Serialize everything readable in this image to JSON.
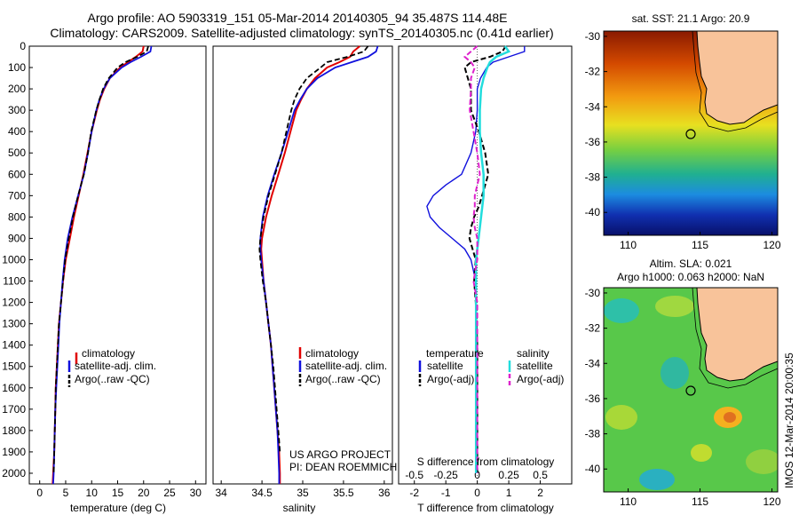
{
  "title": {
    "line1": "Argo profile: AO 5903319_151 05-Mar-2014 20140305_94 35.487S 114.48E",
    "line2": "Climatology: CARS2009. Satellite-adjusted climatology: synTS_20140305.nc (0.41d earlier)"
  },
  "depth_ticks": [
    "0",
    "100",
    "200",
    "300",
    "400",
    "500",
    "600",
    "700",
    "800",
    "900",
    "1000",
    "1100",
    "1200",
    "1300",
    "1400",
    "1500",
    "1600",
    "1700",
    "1800",
    "1900",
    "2000"
  ],
  "colors": {
    "climatology": "#e00000",
    "satellite": "#1010dd",
    "argo": "#000000",
    "sat_salinity": "#22dddd",
    "argo_salinity": "#dd22cc",
    "land": "#f8c39a"
  },
  "panel_temperature": {
    "xlabel": "temperature (deg C)",
    "x_ticks": [
      "0",
      "5",
      "10",
      "15",
      "20",
      "25",
      "30"
    ],
    "legend": [
      "climatology",
      "satellite-adj. clim.",
      "Argo(..raw -QC)"
    ]
  },
  "panel_salinity": {
    "xlabel": "salinity",
    "x_ticks": [
      "34",
      "34.5",
      "35",
      "35.5",
      "36"
    ],
    "legend": [
      "climatology",
      "satellite-adj. clim.",
      "Argo(..raw -QC)"
    ],
    "note1": "US ARGO PROJECT",
    "note2": "PI: DEAN ROEMMICH"
  },
  "panel_difference": {
    "xlabel": "T difference from climatology",
    "top_label": "S difference from climatology",
    "t_ticks": [
      "-2",
      "-1",
      "0",
      "1",
      "2"
    ],
    "s_ticks": [
      "-0.5",
      "-0.25",
      "0",
      "0.25",
      "0.5"
    ],
    "legend_temp_title": "temperature",
    "legend_sal_title": "salinity",
    "legend_temp_items": [
      "satellite",
      "Argo(-adj)"
    ],
    "legend_sal_items": [
      "satellite",
      "Argo(-adj)"
    ]
  },
  "map_sst": {
    "title": "sat. SST: 21.1  Argo: 20.9",
    "y_ticks": [
      "-30",
      "-32",
      "-34",
      "-36",
      "-38",
      "-40"
    ],
    "x_ticks": [
      "110",
      "115",
      "120"
    ]
  },
  "map_sla": {
    "title1": "Altim. SLA: 0.021",
    "title2": "Argo h1000: 0.063 h2000: NaN",
    "y_ticks": [
      "-30",
      "-32",
      "-34",
      "-36",
      "-38",
      "-40"
    ],
    "x_ticks": [
      "110",
      "115",
      "120"
    ]
  },
  "imos_stamp": "IMOS 12-Mar-2014 20:00:35",
  "chart_data": {
    "type": "line",
    "ylabel": "",
    "ylim": [
      2050,
      0
    ],
    "temperature": {
      "xlim": [
        -2,
        32
      ],
      "depth": [
        0,
        25,
        50,
        75,
        100,
        150,
        200,
        250,
        300,
        400,
        500,
        600,
        700,
        800,
        900,
        1000,
        1100,
        1200,
        1300,
        1400,
        1500,
        1600,
        1700,
        1800,
        1900,
        2000,
        2050
      ],
      "climatology": [
        20.0,
        19.8,
        18.5,
        17.0,
        15.5,
        13.5,
        12.4,
        11.6,
        11.0,
        10.0,
        9.2,
        8.4,
        7.5,
        6.6,
        5.8,
        5.0,
        4.5,
        4.1,
        3.7,
        3.5,
        3.3,
        3.1,
        3.0,
        2.9,
        2.8,
        2.6,
        2.5
      ],
      "satellite": [
        21.5,
        21.3,
        19.5,
        17.5,
        15.8,
        13.5,
        12.3,
        11.5,
        10.9,
        10.0,
        9.3,
        8.5,
        7.4,
        6.3,
        5.4,
        4.8,
        4.4,
        4.1,
        3.8,
        3.6,
        3.4,
        3.2,
        3.0,
        2.9,
        2.8,
        2.7,
        2.6
      ],
      "argo": [
        20.9,
        20.6,
        18.8,
        16.5,
        15.0,
        13.3,
        12.2,
        11.5,
        10.9,
        9.9,
        9.3,
        8.5,
        7.4,
        6.4,
        5.6,
        4.9,
        4.5,
        4.1,
        3.7,
        3.5,
        3.3,
        3.1,
        3.0,
        2.9,
        2.8,
        2.7
      ]
    },
    "salinity": {
      "xlim": [
        33.9,
        36.1
      ],
      "depth": [
        0,
        25,
        50,
        75,
        100,
        150,
        200,
        250,
        300,
        400,
        500,
        600,
        700,
        800,
        900,
        950,
        1000,
        1100,
        1200,
        1300,
        1400,
        1500,
        1600,
        1700,
        1800,
        1900,
        2000,
        2050
      ],
      "climatology": [
        35.7,
        35.62,
        35.58,
        35.45,
        35.3,
        35.15,
        35.05,
        34.98,
        34.92,
        34.85,
        34.78,
        34.7,
        34.62,
        34.55,
        34.5,
        34.49,
        34.5,
        34.52,
        34.55,
        34.58,
        34.61,
        34.63,
        34.65,
        34.67,
        34.69,
        34.71,
        34.72,
        34.72
      ],
      "satellite": [
        35.92,
        35.9,
        35.8,
        35.6,
        35.4,
        35.18,
        35.05,
        34.97,
        34.9,
        34.82,
        34.74,
        34.65,
        34.57,
        34.51,
        34.48,
        34.48,
        34.49,
        34.52,
        34.55,
        34.58,
        34.61,
        34.63,
        34.65,
        34.67,
        34.69,
        34.7,
        34.71,
        34.71
      ],
      "argo": [
        35.8,
        35.75,
        35.55,
        35.3,
        35.22,
        35.05,
        34.96,
        34.9,
        34.86,
        34.8,
        34.74,
        34.66,
        34.58,
        34.52,
        34.48,
        34.47,
        34.48,
        34.51,
        34.55,
        34.58,
        34.61,
        34.64,
        34.66,
        34.68,
        34.7,
        34.72
      ]
    },
    "difference": {
      "xlim": [
        -2.5,
        3.0
      ],
      "depth": [
        0,
        25,
        50,
        75,
        100,
        150,
        200,
        300,
        400,
        500,
        600,
        650,
        700,
        750,
        800,
        850,
        900,
        950,
        1000,
        1100,
        1200,
        1400,
        1600,
        1800,
        2000
      ],
      "t_satellite": [
        1.5,
        1.5,
        1.0,
        0.5,
        0.3,
        0.1,
        0.0,
        0.0,
        -0.05,
        -0.2,
        -0.5,
        -1.0,
        -1.4,
        -1.6,
        -1.5,
        -1.2,
        -0.8,
        -0.4,
        -0.2,
        -0.05,
        -0.05,
        0.0,
        0.0,
        0.0,
        0.0
      ],
      "t_argo": [
        0.9,
        0.8,
        0.4,
        -0.2,
        -0.4,
        -0.3,
        -0.2,
        -0.2,
        0.05,
        0.25,
        0.35,
        0.25,
        0.15,
        0.05,
        -0.1,
        -0.2,
        -0.25,
        -0.15,
        -0.05,
        -0.1,
        -0.05,
        0.0,
        0.0,
        0.0,
        0.0
      ],
      "s_satellite": [
        0.22,
        0.25,
        0.15,
        0.1,
        0.08,
        0.05,
        0.03,
        0.02,
        0.02,
        0.03,
        0.05,
        0.05,
        0.05,
        0.04,
        0.03,
        0.02,
        0.01,
        0.0,
        -0.01,
        -0.01,
        -0.01,
        -0.01,
        -0.01,
        -0.01,
        -0.01
      ],
      "s_argo": [
        0.0,
        -0.05,
        -0.1,
        -0.05,
        -0.02,
        -0.05,
        -0.05,
        -0.06,
        -0.03,
        0.0,
        0.02,
        0.0,
        -0.02,
        -0.02,
        -0.03,
        -0.02,
        0.0,
        0.0,
        0.0,
        -0.03,
        0.0,
        0.0,
        0.0,
        0.0,
        0.0
      ]
    }
  }
}
